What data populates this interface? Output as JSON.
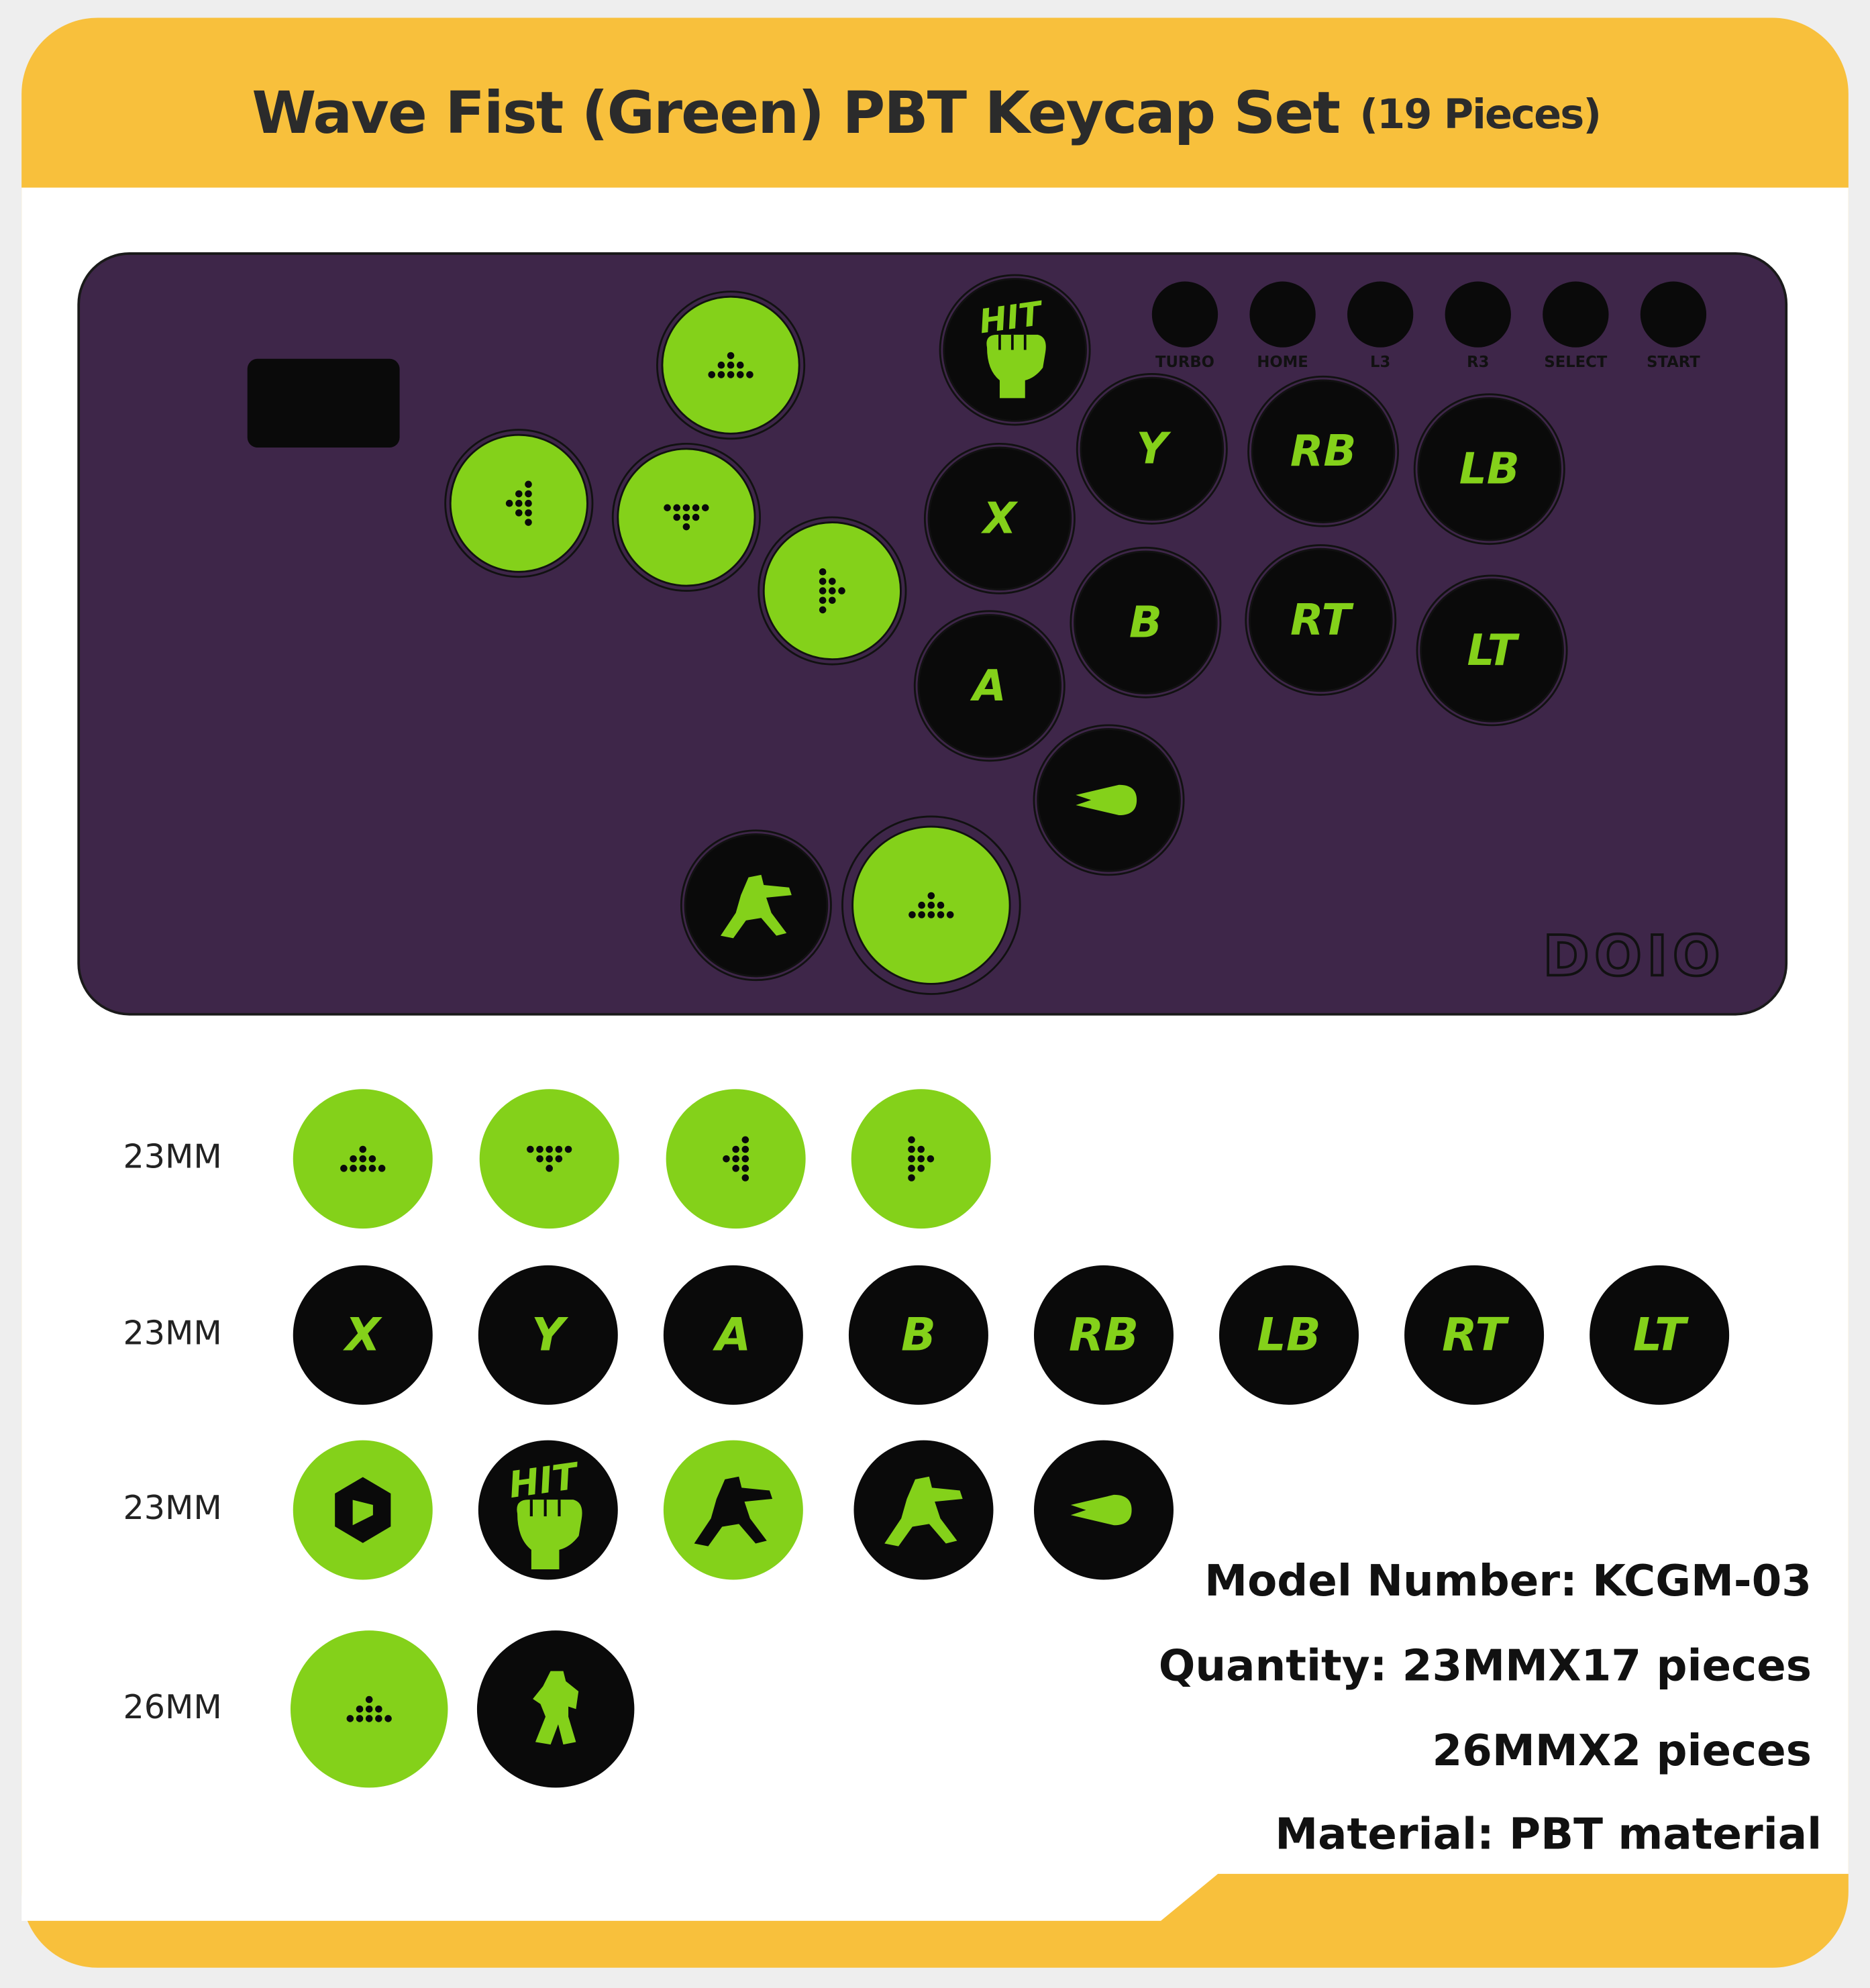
{
  "header": {
    "title": "Wave Fist (Green)  PBT Keycap Set",
    "subtitle": "(19 Pieces)"
  },
  "controller": {
    "brand": "DOIO",
    "hit_text": "HIT",
    "small_buttons": [
      "TURBO",
      "HOME",
      "L3",
      "R3",
      "SELECT",
      "START"
    ],
    "keys": [
      "Y",
      "RB",
      "LB",
      "X",
      "B",
      "RT",
      "LT",
      "A"
    ]
  },
  "rows": [
    {
      "size": "23MM"
    },
    {
      "size": "23MM"
    },
    {
      "size": "23MM"
    },
    {
      "size": "26MM"
    }
  ],
  "black_keys": [
    "X",
    "Y",
    "A",
    "B",
    "RB",
    "LB",
    "RT",
    "LT"
  ],
  "specs": [
    "Model Number: KCGM-03",
    "Quantity: 23MMX17 pieces",
    "26MMX2 pieces",
    "Material: PBT material"
  ]
}
